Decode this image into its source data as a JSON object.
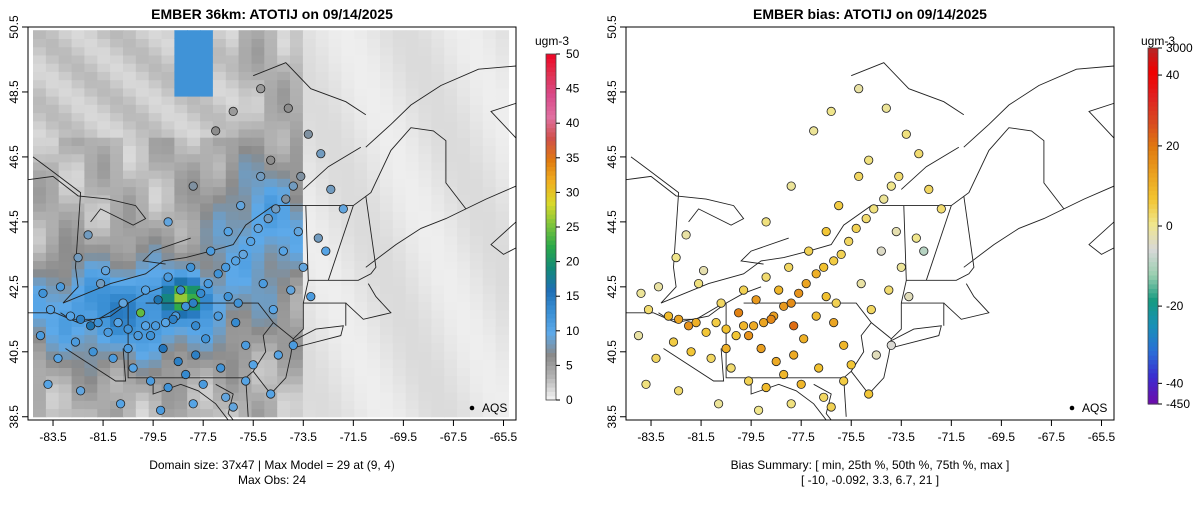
{
  "chart_data": [
    {
      "type": "heatmap",
      "title": "EMBER 36km: ATOTIJ on 09/14/2025",
      "x_ticks": [
        "-83.5",
        "-81.5",
        "-79.5",
        "-77.5",
        "-75.5",
        "-73.5",
        "-71.5",
        "-69.5",
        "-67.5",
        "-65.5"
      ],
      "y_ticks": [
        "38.5",
        "40.5",
        "42.5",
        "44.5",
        "46.5",
        "48.5",
        "50.5"
      ],
      "xlim": [
        -84.5,
        -65.0
      ],
      "ylim": [
        38.4,
        50.5
      ],
      "colorbar_unit": "ugm-3",
      "colorbar_ticks": [
        "0",
        "5",
        "10",
        "15",
        "20",
        "25",
        "30",
        "35",
        "40",
        "45",
        "50"
      ],
      "colorbar_range": [
        0,
        50
      ],
      "colorbar_colors": [
        "#f0f0f0",
        "#b3b3b3",
        "#8a8a8a",
        "#5da9e9",
        "#3a8fd4",
        "#1f6fb5",
        "#138a78",
        "#2aa84a",
        "#7cc43c",
        "#d8d82a",
        "#f0b020",
        "#e07a10",
        "#d0504a",
        "#e070a0",
        "#d94a8a",
        "#e03050",
        "#f00020"
      ],
      "legend_label": "AQS",
      "caption_line1": "Domain size: 37x47 | Max Model = 29 at (9, 4)",
      "caption_line2": "Max Obs: 24",
      "points": [
        [
          -83.9,
          42.3,
          12
        ],
        [
          -83.6,
          41.8,
          10
        ],
        [
          -83.2,
          42.5,
          11
        ],
        [
          -82.8,
          41.6,
          10
        ],
        [
          -82.4,
          41.5,
          14
        ],
        [
          -82.0,
          41.3,
          16
        ],
        [
          -81.7,
          41.4,
          12
        ],
        [
          -81.3,
          41.1,
          11
        ],
        [
          -80.9,
          41.4,
          10
        ],
        [
          -80.5,
          41.2,
          12
        ],
        [
          -80.1,
          41.0,
          11
        ],
        [
          -79.8,
          41.3,
          10
        ],
        [
          -79.4,
          41.3,
          11
        ],
        [
          -79.0,
          41.4,
          10
        ],
        [
          -78.6,
          41.6,
          11
        ],
        [
          -78.2,
          41.9,
          12
        ],
        [
          -77.9,
          42.0,
          14
        ],
        [
          -77.6,
          42.3,
          13
        ],
        [
          -77.3,
          42.6,
          11
        ],
        [
          -76.9,
          42.9,
          12
        ],
        [
          -76.6,
          43.1,
          11
        ],
        [
          -76.2,
          43.3,
          10
        ],
        [
          -75.9,
          43.5,
          9
        ],
        [
          -75.6,
          43.9,
          10
        ],
        [
          -75.3,
          44.3,
          9
        ],
        [
          -74.9,
          44.6,
          8
        ],
        [
          -74.6,
          44.9,
          8
        ],
        [
          -74.2,
          45.2,
          7
        ],
        [
          -73.9,
          45.6,
          8
        ],
        [
          -73.6,
          45.9,
          7
        ],
        [
          -74.8,
          46.4,
          6
        ],
        [
          -75.2,
          45.9,
          8
        ],
        [
          -76.0,
          45.0,
          9
        ],
        [
          -76.5,
          44.2,
          10
        ],
        [
          -77.2,
          43.6,
          11
        ],
        [
          -78.0,
          43.1,
          12
        ],
        [
          -78.9,
          42.8,
          11
        ],
        [
          -79.8,
          42.4,
          10
        ],
        [
          -80.7,
          42.0,
          9
        ],
        [
          -81.6,
          42.6,
          8
        ],
        [
          -82.5,
          43.4,
          8
        ],
        [
          -83.3,
          40.3,
          10
        ],
        [
          -82.6,
          40.8,
          11
        ],
        [
          -81.9,
          40.5,
          12
        ],
        [
          -81.1,
          40.3,
          11
        ],
        [
          -80.3,
          40.0,
          10
        ],
        [
          -79.6,
          39.6,
          11
        ],
        [
          -78.9,
          39.4,
          12
        ],
        [
          -78.2,
          39.8,
          13
        ],
        [
          -77.8,
          40.4,
          14
        ],
        [
          -77.4,
          40.9,
          12
        ],
        [
          -76.9,
          41.6,
          11
        ],
        [
          -76.5,
          42.2,
          12
        ],
        [
          -76.2,
          41.4,
          13
        ],
        [
          -75.8,
          40.7,
          11
        ],
        [
          -75.5,
          40.1,
          10
        ],
        [
          -76.6,
          39.1,
          9
        ],
        [
          -77.9,
          38.9,
          10
        ],
        [
          -79.2,
          38.7,
          11
        ],
        [
          -80.8,
          38.9,
          10
        ],
        [
          -82.4,
          39.3,
          9
        ],
        [
          -83.7,
          39.5,
          10
        ],
        [
          -84.0,
          41.0,
          11
        ],
        [
          -77.0,
          47.3,
          6
        ],
        [
          -76.3,
          47.9,
          5
        ],
        [
          -75.2,
          48.6,
          5
        ],
        [
          -74.1,
          48.0,
          6
        ],
        [
          -73.3,
          47.2,
          7
        ],
        [
          -72.8,
          46.6,
          8
        ],
        [
          -73.7,
          44.2,
          9
        ],
        [
          -74.3,
          43.6,
          10
        ],
        [
          -75.1,
          42.6,
          11
        ],
        [
          -76.1,
          42.0,
          12
        ],
        [
          -77.8,
          41.3,
          13
        ],
        [
          -78.7,
          41.5,
          14
        ],
        [
          -79.6,
          41.0,
          12
        ],
        [
          -80.5,
          40.6,
          11
        ],
        [
          -74.7,
          41.8,
          10
        ],
        [
          -74.0,
          42.4,
          9
        ],
        [
          -73.5,
          43.1,
          9
        ],
        [
          -72.9,
          44.0,
          8
        ],
        [
          -74.5,
          40.4,
          10
        ],
        [
          -73.9,
          40.7,
          11
        ],
        [
          -75.8,
          39.6,
          10
        ],
        [
          -76.8,
          40.0,
          12
        ],
        [
          -77.5,
          39.5,
          11
        ],
        [
          -78.5,
          40.2,
          14
        ],
        [
          -79.1,
          40.6,
          15
        ],
        [
          -80.0,
          41.7,
          24
        ],
        [
          -79.3,
          42.1,
          16
        ],
        [
          -78.4,
          42.4,
          13
        ],
        [
          -81.4,
          43.0,
          9
        ],
        [
          -82.1,
          44.1,
          8
        ],
        [
          -77.9,
          45.6,
          7
        ],
        [
          -78.9,
          44.5,
          9
        ],
        [
          -72.4,
          45.5,
          8
        ],
        [
          -71.9,
          44.9,
          9
        ],
        [
          -72.6,
          43.6,
          10
        ],
        [
          -73.2,
          42.2,
          11
        ],
        [
          -74.8,
          39.2,
          10
        ],
        [
          -76.3,
          38.8,
          9
        ]
      ]
    },
    {
      "type": "scatter",
      "title": "EMBER bias: ATOTIJ on 09/14/2025",
      "x_ticks": [
        "-83.5",
        "-81.5",
        "-79.5",
        "-77.5",
        "-75.5",
        "-73.5",
        "-71.5",
        "-69.5",
        "-67.5",
        "-65.5"
      ],
      "y_ticks": [
        "38.5",
        "40.5",
        "42.5",
        "44.5",
        "46.5",
        "48.5",
        "50.5"
      ],
      "xlim": [
        -84.5,
        -65.0
      ],
      "ylim": [
        38.4,
        50.5
      ],
      "colorbar_unit": "ugm-3",
      "colorbar_ticks": [
        "3000",
        "40",
        "20",
        "0",
        "-20",
        "-40",
        "-450"
      ],
      "colorbar_colors": [
        "#6a0dad",
        "#3b2dd0",
        "#2a6fd6",
        "#1890b8",
        "#159a80",
        "#9acfb0",
        "#d8d8d8",
        "#f0e68c",
        "#f2c430",
        "#eaa020",
        "#e07a10",
        "#d84b20",
        "#e02020",
        "#f00000",
        "#b02a2a"
      ],
      "legend_label": "AQS",
      "caption_line1": "Bias Summary: [ min, 25th %, 50th %, 75th %, max ]",
      "caption_line2": "[ -10,   -0.092,   3.3,   6.7,   21 ]",
      "points": [
        [
          -83.9,
          42.3,
          -1
        ],
        [
          -83.6,
          41.8,
          2
        ],
        [
          -83.2,
          42.5,
          -2
        ],
        [
          -82.8,
          41.6,
          8
        ],
        [
          -82.4,
          41.5,
          12
        ],
        [
          -82.0,
          41.3,
          15
        ],
        [
          -81.7,
          41.4,
          10
        ],
        [
          -81.3,
          41.1,
          6
        ],
        [
          -80.9,
          41.4,
          5
        ],
        [
          -80.5,
          41.2,
          7
        ],
        [
          -80.1,
          41.0,
          6
        ],
        [
          -79.8,
          41.3,
          9
        ],
        [
          -79.4,
          41.3,
          11
        ],
        [
          -79.0,
          41.4,
          12
        ],
        [
          -78.6,
          41.6,
          13
        ],
        [
          -78.2,
          41.9,
          14
        ],
        [
          -77.9,
          42.0,
          16
        ],
        [
          -77.6,
          42.3,
          15
        ],
        [
          -77.3,
          42.6,
          12
        ],
        [
          -76.9,
          42.9,
          10
        ],
        [
          -76.6,
          43.1,
          7
        ],
        [
          -76.2,
          43.3,
          5
        ],
        [
          -75.9,
          43.5,
          4
        ],
        [
          -75.6,
          43.9,
          3
        ],
        [
          -75.3,
          44.3,
          4
        ],
        [
          -74.9,
          44.6,
          2
        ],
        [
          -74.6,
          44.9,
          1
        ],
        [
          -74.2,
          45.2,
          -1
        ],
        [
          -73.9,
          45.6,
          0
        ],
        [
          -73.6,
          45.9,
          2
        ],
        [
          -74.8,
          46.4,
          1
        ],
        [
          -75.2,
          45.9,
          3
        ],
        [
          -76.0,
          45.0,
          5
        ],
        [
          -76.5,
          44.2,
          6
        ],
        [
          -77.2,
          43.6,
          4
        ],
        [
          -78.0,
          43.1,
          3
        ],
        [
          -78.9,
          42.8,
          2
        ],
        [
          -79.8,
          42.4,
          4
        ],
        [
          -80.7,
          42.0,
          3
        ],
        [
          -81.6,
          42.6,
          1
        ],
        [
          -82.5,
          43.4,
          0
        ],
        [
          -83.3,
          40.3,
          3
        ],
        [
          -82.6,
          40.8,
          5
        ],
        [
          -81.9,
          40.5,
          6
        ],
        [
          -81.1,
          40.3,
          3
        ],
        [
          -80.3,
          40.0,
          2
        ],
        [
          -79.6,
          39.6,
          4
        ],
        [
          -78.9,
          39.4,
          8
        ],
        [
          -78.2,
          39.8,
          9
        ],
        [
          -77.8,
          40.4,
          11
        ],
        [
          -77.4,
          40.9,
          10
        ],
        [
          -76.9,
          41.6,
          8
        ],
        [
          -76.5,
          42.2,
          7
        ],
        [
          -76.2,
          41.4,
          12
        ],
        [
          -75.8,
          40.7,
          9
        ],
        [
          -75.5,
          40.1,
          6
        ],
        [
          -76.6,
          39.1,
          3
        ],
        [
          -77.9,
          38.9,
          1
        ],
        [
          -79.2,
          38.7,
          0
        ],
        [
          -80.8,
          38.9,
          -1
        ],
        [
          -82.4,
          39.3,
          2
        ],
        [
          -83.7,
          39.5,
          1
        ],
        [
          -84.0,
          41.0,
          -2
        ],
        [
          -77.0,
          47.3,
          -1
        ],
        [
          -76.3,
          47.9,
          0
        ],
        [
          -75.2,
          48.6,
          -2
        ],
        [
          -74.1,
          48.0,
          -1
        ],
        [
          -73.3,
          47.2,
          1
        ],
        [
          -72.8,
          46.6,
          2
        ],
        [
          -73.7,
          44.2,
          -3
        ],
        [
          -74.3,
          43.6,
          -5
        ],
        [
          -75.1,
          42.6,
          -2
        ],
        [
          -76.1,
          42.0,
          4
        ],
        [
          -77.8,
          41.3,
          21
        ],
        [
          -78.7,
          41.5,
          17
        ],
        [
          -79.6,
          41.0,
          15
        ],
        [
          -80.5,
          40.6,
          10
        ],
        [
          -74.7,
          41.8,
          3
        ],
        [
          -74.0,
          42.4,
          2
        ],
        [
          -73.5,
          43.1,
          -1
        ],
        [
          -72.9,
          44.0,
          0
        ],
        [
          -74.5,
          40.4,
          -4
        ],
        [
          -73.9,
          40.7,
          -6
        ],
        [
          -75.8,
          39.6,
          5
        ],
        [
          -76.8,
          40.0,
          7
        ],
        [
          -77.5,
          39.5,
          9
        ],
        [
          -78.5,
          40.2,
          11
        ],
        [
          -79.1,
          40.6,
          13
        ],
        [
          -80.0,
          41.7,
          18
        ],
        [
          -79.3,
          42.1,
          14
        ],
        [
          -78.4,
          42.4,
          9
        ],
        [
          -81.4,
          43.0,
          -3
        ],
        [
          -82.1,
          44.1,
          -2
        ],
        [
          -77.9,
          45.6,
          -1
        ],
        [
          -78.9,
          44.5,
          1
        ],
        [
          -72.4,
          45.5,
          3
        ],
        [
          -71.9,
          44.9,
          2
        ],
        [
          -72.6,
          43.6,
          -10
        ],
        [
          -73.2,
          42.2,
          -4
        ],
        [
          -74.8,
          39.2,
          6
        ],
        [
          -76.3,
          38.8,
          4
        ]
      ]
    }
  ]
}
